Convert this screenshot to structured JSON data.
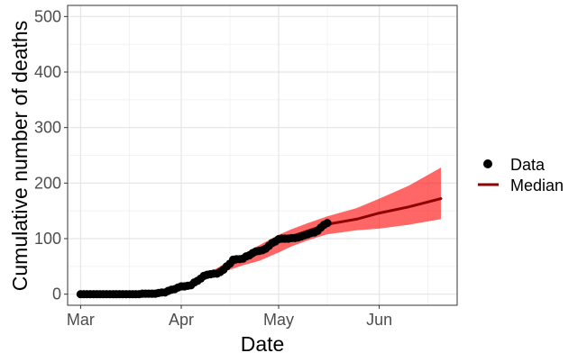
{
  "chart_data": {
    "type": "line",
    "xlabel": "Date",
    "ylabel": "Cumulative number of deaths",
    "xlim": [
      "2020-02-26",
      "2020-06-25"
    ],
    "ylim": [
      -20,
      520
    ],
    "x_ticks": [
      {
        "date": "2020-03-01",
        "label": "Mar"
      },
      {
        "date": "2020-04-01",
        "label": "Apr"
      },
      {
        "date": "2020-05-01",
        "label": "May"
      },
      {
        "date": "2020-06-01",
        "label": "Jun"
      }
    ],
    "x_minor_ticks": [
      "2020-03-16",
      "2020-04-16",
      "2020-05-16",
      "2020-06-16"
    ],
    "y_ticks": [
      0,
      100,
      200,
      300,
      400,
      500
    ],
    "y_minor_ticks": [
      50,
      150,
      250,
      350,
      450
    ],
    "grid": true,
    "legend": {
      "position": "right",
      "items": [
        {
          "label": "Data",
          "symbol": "point",
          "color": "#000000"
        },
        {
          "label": "Median",
          "symbol": "line",
          "color": "#8b0000"
        }
      ]
    },
    "series": [
      {
        "name": "Data",
        "kind": "scatter",
        "color": "#000000",
        "points": [
          [
            "2020-03-01",
            0
          ],
          [
            "2020-03-02",
            0
          ],
          [
            "2020-03-03",
            0
          ],
          [
            "2020-03-04",
            0
          ],
          [
            "2020-03-05",
            0
          ],
          [
            "2020-03-06",
            0
          ],
          [
            "2020-03-07",
            0
          ],
          [
            "2020-03-08",
            0
          ],
          [
            "2020-03-09",
            0
          ],
          [
            "2020-03-10",
            0
          ],
          [
            "2020-03-11",
            0
          ],
          [
            "2020-03-12",
            0
          ],
          [
            "2020-03-13",
            0
          ],
          [
            "2020-03-14",
            0
          ],
          [
            "2020-03-15",
            0
          ],
          [
            "2020-03-16",
            0
          ],
          [
            "2020-03-17",
            0
          ],
          [
            "2020-03-18",
            0
          ],
          [
            "2020-03-19",
            0
          ],
          [
            "2020-03-20",
            1
          ],
          [
            "2020-03-21",
            1
          ],
          [
            "2020-03-22",
            1
          ],
          [
            "2020-03-23",
            1
          ],
          [
            "2020-03-24",
            1
          ],
          [
            "2020-03-25",
            2
          ],
          [
            "2020-03-26",
            3
          ],
          [
            "2020-03-27",
            3
          ],
          [
            "2020-03-28",
            6
          ],
          [
            "2020-03-29",
            8
          ],
          [
            "2020-03-30",
            9
          ],
          [
            "2020-03-31",
            12
          ],
          [
            "2020-04-01",
            14
          ],
          [
            "2020-04-02",
            14
          ],
          [
            "2020-04-03",
            15
          ],
          [
            "2020-04-04",
            16
          ],
          [
            "2020-04-05",
            21
          ],
          [
            "2020-04-06",
            24
          ],
          [
            "2020-04-07",
            28
          ],
          [
            "2020-04-08",
            33
          ],
          [
            "2020-04-09",
            35
          ],
          [
            "2020-04-10",
            36
          ],
          [
            "2020-04-11",
            37
          ],
          [
            "2020-04-12",
            37
          ],
          [
            "2020-04-13",
            40
          ],
          [
            "2020-04-14",
            44
          ],
          [
            "2020-04-15",
            50
          ],
          [
            "2020-04-16",
            55
          ],
          [
            "2020-04-17",
            62
          ],
          [
            "2020-04-18",
            63
          ],
          [
            "2020-04-19",
            63
          ],
          [
            "2020-04-20",
            64
          ],
          [
            "2020-04-21",
            68
          ],
          [
            "2020-04-22",
            70
          ],
          [
            "2020-04-23",
            74
          ],
          [
            "2020-04-24",
            77
          ],
          [
            "2020-04-25",
            78
          ],
          [
            "2020-04-26",
            79
          ],
          [
            "2020-04-27",
            82
          ],
          [
            "2020-04-28",
            87
          ],
          [
            "2020-04-29",
            92
          ],
          [
            "2020-04-30",
            95
          ],
          [
            "2020-05-01",
            99
          ],
          [
            "2020-05-02",
            100
          ],
          [
            "2020-05-03",
            100
          ],
          [
            "2020-05-04",
            100
          ],
          [
            "2020-05-05",
            101
          ],
          [
            "2020-05-06",
            101
          ],
          [
            "2020-05-07",
            102
          ],
          [
            "2020-05-08",
            104
          ],
          [
            "2020-05-09",
            106
          ],
          [
            "2020-05-10",
            108
          ],
          [
            "2020-05-11",
            110
          ],
          [
            "2020-05-12",
            111
          ],
          [
            "2020-05-13",
            114
          ],
          [
            "2020-05-14",
            120
          ],
          [
            "2020-05-15",
            125
          ],
          [
            "2020-05-16",
            128
          ]
        ]
      },
      {
        "name": "Median",
        "kind": "line",
        "color": "#8b0000",
        "points": [
          [
            "2020-03-01",
            0
          ],
          [
            "2020-03-10",
            0
          ],
          [
            "2020-03-18",
            0
          ],
          [
            "2020-03-22",
            1
          ],
          [
            "2020-03-25",
            2
          ],
          [
            "2020-03-28",
            6
          ],
          [
            "2020-04-01",
            13
          ],
          [
            "2020-04-05",
            20
          ],
          [
            "2020-04-10",
            35
          ],
          [
            "2020-04-15",
            50
          ],
          [
            "2020-04-20",
            63
          ],
          [
            "2020-04-25",
            75
          ],
          [
            "2020-05-01",
            97
          ],
          [
            "2020-05-05",
            104
          ],
          [
            "2020-05-10",
            114
          ],
          [
            "2020-05-16",
            126
          ],
          [
            "2020-05-25",
            135
          ],
          [
            "2020-06-01",
            146
          ],
          [
            "2020-06-10",
            157
          ],
          [
            "2020-06-20",
            172
          ]
        ]
      },
      {
        "kind": "ribbon",
        "color": "#ff0000",
        "points": [
          [
            "2020-03-01",
            0,
            0
          ],
          [
            "2020-03-10",
            0,
            0
          ],
          [
            "2020-03-18",
            0,
            1
          ],
          [
            "2020-03-22",
            0,
            2
          ],
          [
            "2020-03-25",
            1,
            3
          ],
          [
            "2020-03-28",
            4,
            8
          ],
          [
            "2020-04-01",
            10,
            16
          ],
          [
            "2020-04-05",
            17,
            24
          ],
          [
            "2020-04-10",
            30,
            40
          ],
          [
            "2020-04-15",
            42,
            57
          ],
          [
            "2020-04-20",
            52,
            72
          ],
          [
            "2020-04-25",
            60,
            88
          ],
          [
            "2020-05-01",
            75,
            107
          ],
          [
            "2020-05-05",
            86,
            117
          ],
          [
            "2020-05-10",
            97,
            128
          ],
          [
            "2020-05-16",
            108,
            140
          ],
          [
            "2020-05-25",
            115,
            155
          ],
          [
            "2020-06-01",
            118,
            172
          ],
          [
            "2020-06-10",
            125,
            195
          ],
          [
            "2020-06-20",
            135,
            228
          ]
        ]
      }
    ]
  }
}
